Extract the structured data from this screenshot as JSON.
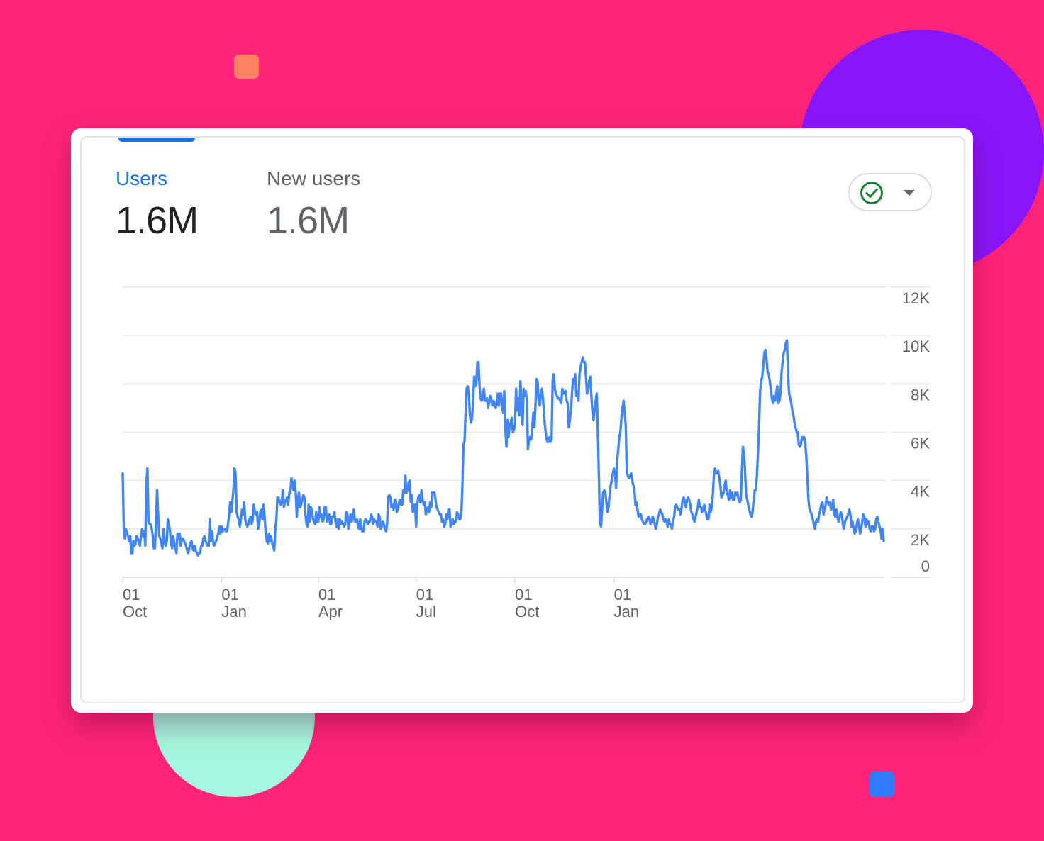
{
  "metrics": {
    "users": {
      "label": "Users",
      "value": "1.6M"
    },
    "new_users": {
      "label": "New users",
      "value": "1.6M"
    }
  },
  "compare_control": {
    "icon": "check-circle-icon",
    "menu_icon": "chevron-down-icon"
  },
  "colors": {
    "background": "#ff237a",
    "line": "#4285f4",
    "accent": "#1a73e8",
    "check": "#188038",
    "deco_orange": "#ff8260",
    "deco_purple": "#8a14fa",
    "deco_mint": "#a6f7df",
    "deco_blue": "#2f7bfc"
  },
  "chart_data": {
    "type": "line",
    "title": "",
    "xlabel": "",
    "ylabel": "",
    "ylim": [
      0,
      12000
    ],
    "yticks": [
      {
        "value": 0,
        "label": "0"
      },
      {
        "value": 2000,
        "label": "2K"
      },
      {
        "value": 4000,
        "label": "4K"
      },
      {
        "value": 6000,
        "label": "6K"
      },
      {
        "value": 8000,
        "label": "8K"
      },
      {
        "value": 10000,
        "label": "10K"
      },
      {
        "value": 12000,
        "label": "12K"
      }
    ],
    "xticks": [
      {
        "day": 0,
        "day_label": "01",
        "month_label": "Oct"
      },
      {
        "day": 92,
        "day_label": "01",
        "month_label": "Jan"
      },
      {
        "day": 182,
        "day_label": "01",
        "month_label": "Apr"
      },
      {
        "day": 273,
        "day_label": "01",
        "month_label": "Jul"
      },
      {
        "day": 365,
        "day_label": "01",
        "month_label": "Oct"
      },
      {
        "day": 457,
        "day_label": "01",
        "month_label": "Jan"
      }
    ],
    "grid": true,
    "series": [
      {
        "name": "",
        "x_start": "01 Oct",
        "x_step_days": 1,
        "values": [
          4300,
          2000,
          1600,
          2000,
          1800,
          1700,
          1500,
          1700,
          1000,
          1000,
          1500,
          1300,
          1400,
          1700,
          1600,
          1500,
          1300,
          1700,
          2000,
          1700,
          1900,
          1300,
          3800,
          4500,
          2300,
          2200,
          2200,
          2000,
          1700,
          1200,
          1200,
          2300,
          3600,
          2600,
          1700,
          1600,
          1400,
          1200,
          2000,
          1500,
          1300,
          1500,
          2400,
          2200,
          1900,
          1400,
          1200,
          1700,
          1400,
          1200,
          1000,
          1800,
          1600,
          1800,
          1300,
          1600,
          1600,
          1500,
          1400,
          1300,
          1100,
          1000,
          1200,
          1400,
          1500,
          1200,
          1100,
          1300,
          1100,
          1000,
          900,
          1000,
          1000,
          1300,
          1300,
          1600,
          1700,
          1500,
          1400,
          1300,
          1300,
          2400,
          1500,
          1900,
          1500,
          1300,
          1400,
          1500,
          1700,
          1800,
          2100,
          1800,
          2100,
          1900,
          2000,
          2000,
          1900,
          1900,
          2200,
          2600,
          3100,
          2700,
          3100,
          3600,
          4500,
          4300,
          2700,
          2500,
          2400,
          2100,
          2400,
          2800,
          2600,
          3100,
          2400,
          2200,
          2100,
          2200,
          2400,
          2500,
          2200,
          2400,
          3000,
          2700,
          2600,
          2700,
          2000,
          2200,
          2700,
          2800,
          2400,
          3000,
          2500,
          1900,
          1500,
          1400,
          1800,
          1500,
          1700,
          1400,
          1300,
          1100,
          2000,
          2400,
          3300,
          3300,
          3100,
          3000,
          3100,
          3600,
          2900,
          3100,
          3200,
          3300,
          3000,
          3500,
          3500,
          4100,
          3800,
          3600,
          4000,
          3500,
          2500,
          3300,
          3500,
          2900,
          3000,
          3200,
          3400,
          3300,
          2600,
          2200,
          2100,
          3000,
          2300,
          2900,
          2800,
          2400,
          2300,
          2200,
          2700,
          2300,
          2300,
          2900,
          2500,
          2600,
          2300,
          2400,
          2900,
          2900,
          2300,
          2500,
          2600,
          2200,
          2200,
          2500,
          2500,
          2700,
          2300,
          2100,
          2400,
          2000,
          2400,
          2200,
          2300,
          2200,
          2100,
          2200,
          2700,
          2600,
          2000,
          2300,
          2600,
          2300,
          2500,
          2800,
          2300,
          2300,
          2400,
          2100,
          2000,
          2400,
          2000,
          1900,
          1900,
          2300,
          2400,
          2300,
          2200,
          2300,
          2300,
          2600,
          2500,
          2200,
          2400,
          2300,
          2300,
          2100,
          2600,
          2500,
          2000,
          2100,
          2300,
          2200,
          2000,
          1900,
          2200,
          3300,
          3400,
          3300,
          2900,
          3000,
          2800,
          3200,
          3200,
          2700,
          2800,
          3100,
          3200,
          3000,
          3000,
          3600,
          3500,
          4200,
          3500,
          3600,
          3900,
          4000,
          3100,
          3400,
          2700,
          3000,
          3000,
          2100,
          3000,
          3300,
          3400,
          3100,
          3600,
          3200,
          3000,
          3100,
          2600,
          2800,
          2900,
          2700,
          3100,
          2900,
          3500,
          3500,
          3500,
          3200,
          2900,
          2800,
          2700,
          2600,
          2600,
          2300,
          2400,
          2100,
          2200,
          2600,
          2400,
          2800,
          2800,
          2100,
          2200,
          2400,
          2200,
          2300,
          2300,
          2700,
          2600,
          2400,
          2400,
          2600,
          3700,
          5500,
          5600,
          6800,
          7800,
          7900,
          7600,
          6700,
          6400,
          6600,
          7300,
          8300,
          7900,
          8000,
          8900,
          8900,
          7900,
          7400,
          7300,
          7400,
          7800,
          7300,
          7300,
          7400,
          7000,
          7300,
          7500,
          7300,
          7100,
          7300,
          7200,
          7000,
          7200,
          7600,
          7100,
          7600,
          7600,
          7100,
          6800,
          7700,
          6100,
          5400,
          6500,
          5800,
          6300,
          6400,
          6600,
          6000,
          6100,
          6300,
          7800,
          6900,
          7400,
          6700,
          8100,
          7100,
          6300,
          7800,
          7500,
          7700,
          7300,
          5300,
          5700,
          5800,
          5700,
          6200,
          6800,
          6200,
          7100,
          8200,
          8100,
          7300,
          7100,
          7600,
          7800,
          7400,
          6700,
          6200,
          5800,
          5600,
          5600,
          5800,
          5600,
          5700,
          8100,
          8400,
          7800,
          7600,
          7500,
          7400,
          7400,
          7300,
          7200,
          7800,
          7600,
          7600,
          7700,
          7300,
          7200,
          6200,
          6500,
          6900,
          7600,
          8200,
          8000,
          8400,
          7500,
          7700,
          7300,
          8400,
          8700,
          8900,
          9100,
          8900,
          8900,
          8300,
          7600,
          7800,
          8100,
          8300,
          7500,
          6900,
          6500,
          6900,
          7300,
          7600,
          6100,
          4200,
          2200,
          2100,
          2800,
          3500,
          3600,
          3500,
          3100,
          2700,
          2900,
          3400,
          3800,
          4000,
          4300,
          4500,
          4300,
          3700,
          4800,
          5300,
          5800,
          6000,
          6600,
          7000,
          7300,
          6800,
          6300,
          4300,
          4200,
          4100,
          4200,
          4300,
          4000,
          3800,
          3700,
          3000,
          3100,
          2800,
          2500,
          2600,
          2600,
          2400,
          2300,
          2200,
          2200,
          2300,
          2400,
          2500,
          2400,
          2200,
          2300,
          2500,
          2400,
          2200,
          2000,
          2200,
          2500,
          2600,
          2800,
          2700,
          2600,
          2400,
          2300,
          2400,
          2300,
          2100,
          2400,
          2200,
          2200,
          2000,
          2300,
          2500,
          2900,
          3000,
          2900,
          2800,
          2800,
          2600,
          2900,
          3200,
          3300,
          3100,
          2900,
          3200,
          3300,
          3200,
          3000,
          2700,
          2600,
          2400,
          2300,
          2500,
          2700,
          2900,
          3200,
          2900,
          2900,
          2700,
          2800,
          3000,
          2800,
          2600,
          2400,
          2400,
          3000,
          2700,
          2900,
          3400,
          4200,
          4500,
          4300,
          4300,
          4400,
          4100,
          3800,
          3300,
          3400,
          3500,
          3800,
          4000,
          3500,
          3400,
          3200,
          3600,
          3300,
          3500,
          3200,
          3200,
          3500,
          3400,
          3500,
          3200,
          3100,
          3200,
          4300,
          5400,
          5100,
          4400,
          3400,
          3200,
          3000,
          2800,
          2600,
          2500,
          2700,
          3200,
          3600,
          3600,
          4200,
          5100,
          6200,
          7700,
          8100,
          8300,
          8800,
          9300,
          9400,
          9000,
          8500,
          8400,
          8100,
          7800,
          7400,
          7200,
          7500,
          7300,
          7600,
          7900,
          7200,
          7300,
          7600,
          8500,
          8900,
          9300,
          9400,
          9700,
          9800,
          8300,
          7600,
          7400,
          7200,
          6900,
          6700,
          6400,
          6200,
          6000,
          6000,
          5500,
          5400,
          5500,
          5800,
          5700,
          5800,
          5500,
          5000,
          4100,
          3200,
          2800,
          2700,
          2600,
          2400,
          2200,
          2000,
          2300,
          2400,
          2300,
          2600,
          2800,
          3000,
          3100,
          2600,
          2800,
          3000,
          3300,
          3100,
          3000,
          3100,
          2800,
          2900,
          3200,
          2600,
          2500,
          2800,
          2500,
          2300,
          2500,
          2700,
          2600,
          2200,
          2000,
          2300,
          2400,
          2500,
          2600,
          2800,
          2600,
          2100,
          2300,
          2000,
          1800,
          1900,
          2200,
          2400,
          2100,
          1800,
          2000,
          2300,
          2600,
          2500,
          2100,
          2400,
          2200,
          2300,
          2000,
          1900,
          2100,
          2100,
          1900,
          2000,
          2400,
          2500,
          2300,
          2100,
          2000,
          1600,
          2000,
          1500
        ]
      }
    ]
  }
}
